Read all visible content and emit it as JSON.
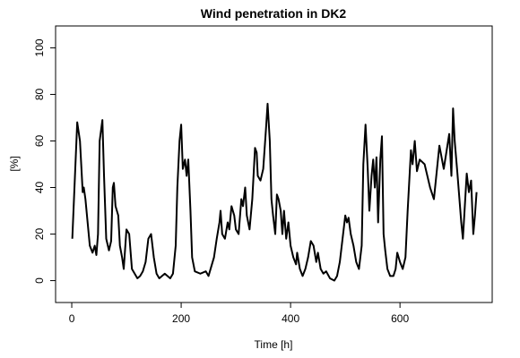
{
  "chart_data": {
    "type": "line",
    "title": "Wind penetration in DK2",
    "xlabel": "Time [h]",
    "ylabel": "[%]",
    "x": [
      1,
      10,
      15,
      20,
      22,
      25,
      33,
      38,
      42,
      45,
      48,
      51,
      56,
      59,
      63,
      68,
      72,
      75,
      77,
      80,
      85,
      88,
      92,
      95,
      100,
      105,
      110,
      115,
      120,
      125,
      130,
      135,
      140,
      145,
      150,
      155,
      160,
      170,
      180,
      185,
      190,
      193,
      197,
      200,
      203,
      207,
      210,
      213,
      217,
      220,
      225,
      235,
      245,
      250,
      255,
      260,
      265,
      270,
      272,
      275,
      280,
      285,
      288,
      292,
      297,
      300,
      305,
      310,
      313,
      317,
      320,
      325,
      330,
      335,
      338,
      340,
      345,
      350,
      355,
      358,
      362,
      365,
      368,
      372,
      375,
      378,
      382,
      385,
      388,
      392,
      396,
      400,
      405,
      410,
      412,
      417,
      422,
      427,
      432,
      437,
      442,
      447,
      450,
      455,
      460,
      465,
      472,
      480,
      485,
      490,
      495,
      500,
      503,
      506,
      510,
      515,
      520,
      525,
      530,
      533,
      537,
      541,
      544,
      548,
      551,
      554,
      557,
      560,
      564,
      567,
      570,
      573,
      577,
      582,
      588,
      592,
      595,
      600,
      605,
      610,
      614,
      620,
      623,
      627,
      631,
      636,
      645,
      655,
      662,
      672,
      680,
      690,
      694,
      697,
      700,
      705,
      712,
      715,
      718,
      722,
      726,
      730,
      734,
      737,
      740
    ],
    "series": [
      {
        "name": "DK2",
        "color": "#000000",
        "values": [
          18,
          68,
          60,
          38,
          40,
          35,
          15,
          12,
          15,
          11,
          20,
          60,
          69,
          45,
          18,
          13,
          17,
          40,
          42,
          32,
          28,
          15,
          10,
          5,
          22,
          20,
          5,
          3,
          1,
          2,
          4,
          8,
          18,
          20,
          10,
          3,
          1,
          3,
          1,
          3,
          15,
          40,
          60,
          67,
          48,
          52,
          45,
          52,
          30,
          10,
          4,
          3,
          4,
          2,
          6,
          10,
          18,
          25,
          30,
          20,
          18,
          25,
          22,
          32,
          28,
          22,
          20,
          35,
          32,
          40,
          28,
          22,
          35,
          57,
          55,
          45,
          43,
          48,
          65,
          76,
          60,
          35,
          28,
          20,
          37,
          35,
          30,
          20,
          30,
          18,
          25,
          15,
          10,
          7,
          12,
          5,
          2,
          5,
          10,
          17,
          15,
          8,
          12,
          5,
          3,
          4,
          1,
          0,
          2,
          8,
          18,
          28,
          25,
          27,
          20,
          15,
          8,
          5,
          15,
          50,
          67,
          48,
          30,
          45,
          52,
          40,
          53,
          25,
          52,
          62,
          20,
          13,
          5,
          2,
          2,
          5,
          12,
          8,
          5,
          10,
          30,
          56,
          50,
          60,
          47,
          52,
          50,
          40,
          35,
          58,
          48,
          63,
          45,
          74,
          60,
          46,
          25,
          18,
          30,
          46,
          38,
          43,
          20,
          28,
          38
        ]
      }
    ],
    "xlim": [
      -29.56,
      768.56
    ],
    "ylim": [
      -9.4,
      109.4
    ],
    "xticks": [
      0,
      200,
      400,
      600
    ],
    "yticks": [
      0,
      20,
      40,
      60,
      80,
      100
    ],
    "grid": false
  }
}
